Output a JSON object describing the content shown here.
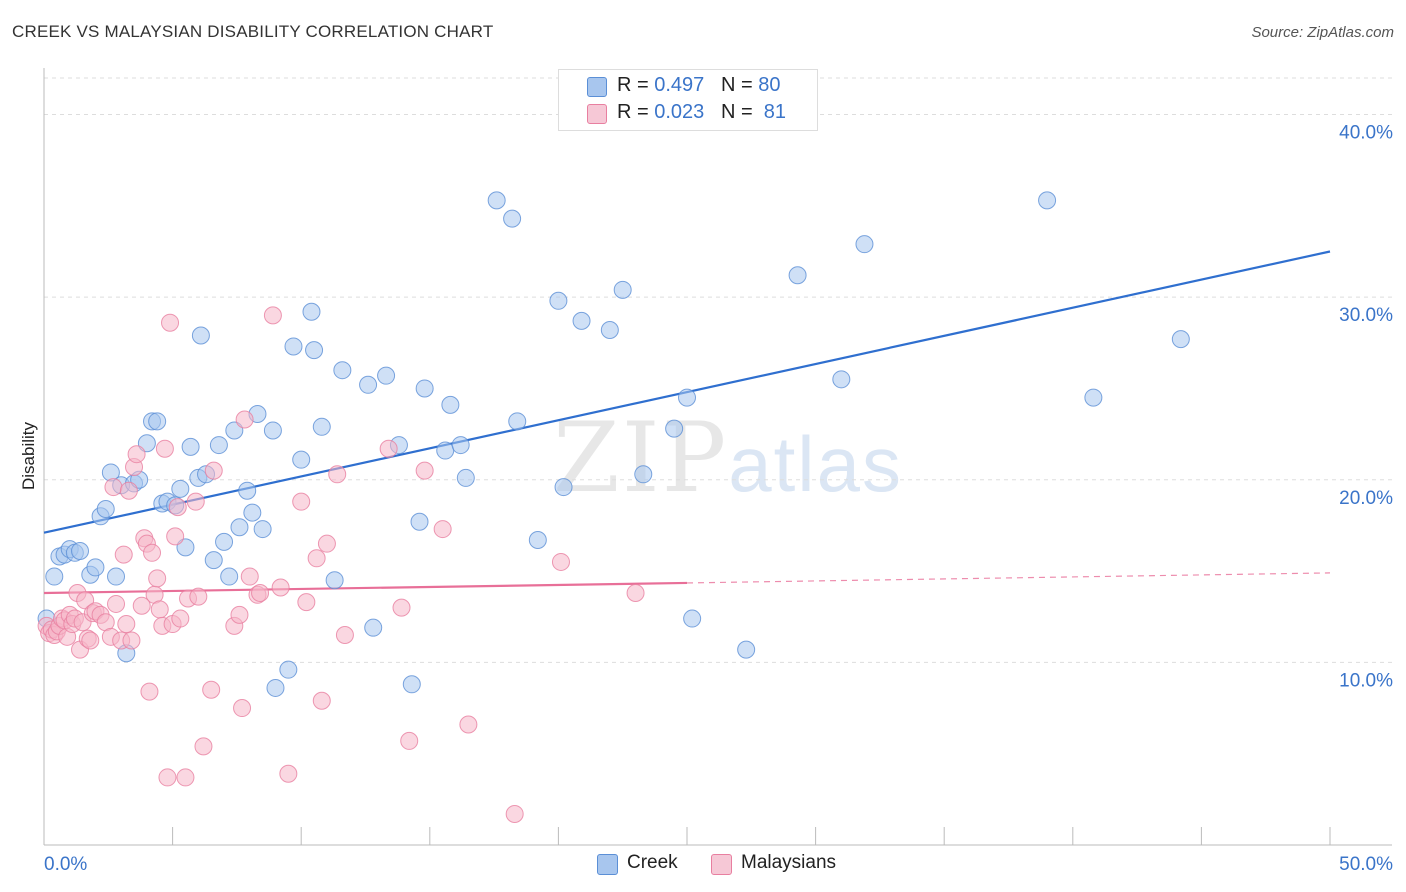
{
  "title": "CREEK VS MALAYSIAN DISABILITY CORRELATION CHART",
  "source": "Source: ZipAtlas.com",
  "watermark": {
    "zip": "ZIP",
    "atlas": "atlas"
  },
  "legend": {
    "rows": [
      {
        "r_label": "R = ",
        "r_value": "0.497",
        "n_label": "N = ",
        "n_value": "80",
        "color": "#a8c6ee"
      },
      {
        "r_label": "R = ",
        "r_value": "0.023",
        "n_label": "N = ",
        "n_value": "81",
        "color": "#f6b6c9"
      }
    ]
  },
  "bottom_legend": {
    "creek": "Creek",
    "malaysians": "Malaysians"
  },
  "colors": {
    "creek_fill": "#a8c6ee",
    "creek_stroke": "#5b8fd6",
    "creek_line": "#2f6fcf",
    "malay_fill": "#f6b6c9",
    "malay_stroke": "#e87fa0",
    "malay_line": "#e86f98",
    "grid": "#dddddd",
    "axis_text": "#3a74c9"
  },
  "chart_data": {
    "type": "scatter",
    "xlabel": "",
    "ylabel": "Disability",
    "xlim": [
      0,
      50
    ],
    "ylim": [
      0,
      42
    ],
    "x_tick_labels": [
      "0.0%",
      "50.0%"
    ],
    "y_ticks": [
      10,
      20,
      30,
      40
    ],
    "y_tick_labels": [
      "10.0%",
      "20.0%",
      "30.0%",
      "40.0%"
    ],
    "grid": true,
    "legend_position": "top-center",
    "series": [
      {
        "name": "Creek",
        "trend": {
          "x": [
            0,
            50
          ],
          "y": [
            17.1,
            32.5
          ],
          "dashed_from": null
        },
        "points": [
          [
            0.1,
            12.4
          ],
          [
            0.4,
            14.7
          ],
          [
            0.6,
            15.8
          ],
          [
            0.8,
            15.9
          ],
          [
            1.0,
            16.2
          ],
          [
            1.2,
            16.0
          ],
          [
            1.4,
            16.1
          ],
          [
            1.8,
            14.8
          ],
          [
            2.0,
            15.2
          ],
          [
            2.2,
            18.0
          ],
          [
            2.4,
            18.4
          ],
          [
            2.6,
            20.4
          ],
          [
            2.8,
            14.7
          ],
          [
            3.0,
            19.7
          ],
          [
            3.2,
            10.5
          ],
          [
            3.5,
            19.8
          ],
          [
            3.7,
            20.0
          ],
          [
            4.0,
            22.0
          ],
          [
            4.2,
            23.2
          ],
          [
            4.4,
            23.2
          ],
          [
            4.6,
            18.7
          ],
          [
            4.8,
            18.8
          ],
          [
            5.1,
            18.6
          ],
          [
            5.3,
            19.5
          ],
          [
            5.5,
            16.3
          ],
          [
            5.7,
            21.8
          ],
          [
            6.0,
            20.1
          ],
          [
            6.1,
            27.9
          ],
          [
            6.3,
            20.3
          ],
          [
            6.6,
            15.6
          ],
          [
            6.8,
            21.9
          ],
          [
            7.0,
            16.6
          ],
          [
            7.2,
            14.7
          ],
          [
            7.4,
            22.7
          ],
          [
            7.6,
            17.4
          ],
          [
            7.9,
            19.4
          ],
          [
            8.1,
            18.2
          ],
          [
            8.3,
            23.6
          ],
          [
            8.5,
            17.3
          ],
          [
            8.9,
            22.7
          ],
          [
            9.0,
            8.6
          ],
          [
            9.5,
            9.6
          ],
          [
            9.7,
            27.3
          ],
          [
            10.0,
            21.1
          ],
          [
            10.4,
            29.2
          ],
          [
            10.5,
            27.1
          ],
          [
            10.8,
            22.9
          ],
          [
            11.3,
            14.5
          ],
          [
            11.6,
            26.0
          ],
          [
            12.6,
            25.2
          ],
          [
            12.8,
            11.9
          ],
          [
            13.3,
            25.7
          ],
          [
            13.8,
            21.9
          ],
          [
            14.3,
            8.8
          ],
          [
            14.6,
            17.7
          ],
          [
            14.8,
            25.0
          ],
          [
            15.6,
            21.6
          ],
          [
            15.8,
            24.1
          ],
          [
            16.2,
            21.9
          ],
          [
            16.4,
            20.1
          ],
          [
            17.6,
            35.3
          ],
          [
            18.2,
            34.3
          ],
          [
            18.4,
            23.2
          ],
          [
            19.2,
            16.7
          ],
          [
            20.0,
            29.8
          ],
          [
            20.2,
            19.6
          ],
          [
            20.9,
            28.7
          ],
          [
            22.0,
            28.2
          ],
          [
            22.5,
            30.4
          ],
          [
            23.3,
            20.3
          ],
          [
            24.5,
            22.8
          ],
          [
            25.0,
            24.5
          ],
          [
            25.2,
            12.4
          ],
          [
            27.3,
            10.7
          ],
          [
            29.3,
            31.2
          ],
          [
            31.0,
            25.5
          ],
          [
            31.9,
            32.9
          ],
          [
            39.0,
            35.3
          ],
          [
            40.8,
            24.5
          ],
          [
            44.2,
            27.7
          ]
        ]
      },
      {
        "name": "Malaysians",
        "trend": {
          "x": [
            0,
            50
          ],
          "y": [
            13.8,
            14.9
          ],
          "dashed_from": 25
        },
        "points": [
          [
            0.1,
            12.0
          ],
          [
            0.2,
            11.6
          ],
          [
            0.3,
            11.8
          ],
          [
            0.4,
            11.5
          ],
          [
            0.5,
            11.7
          ],
          [
            0.6,
            12.0
          ],
          [
            0.7,
            12.4
          ],
          [
            0.8,
            12.3
          ],
          [
            0.9,
            11.4
          ],
          [
            1.0,
            12.6
          ],
          [
            1.1,
            12.1
          ],
          [
            1.2,
            12.4
          ],
          [
            1.3,
            13.8
          ],
          [
            1.4,
            10.7
          ],
          [
            1.5,
            12.2
          ],
          [
            1.6,
            13.4
          ],
          [
            1.7,
            11.3
          ],
          [
            1.8,
            11.2
          ],
          [
            1.9,
            12.7
          ],
          [
            2.0,
            12.8
          ],
          [
            2.2,
            12.6
          ],
          [
            2.4,
            12.2
          ],
          [
            2.6,
            11.4
          ],
          [
            2.7,
            19.6
          ],
          [
            2.8,
            13.2
          ],
          [
            3.0,
            11.2
          ],
          [
            3.1,
            15.9
          ],
          [
            3.2,
            12.1
          ],
          [
            3.3,
            19.4
          ],
          [
            3.4,
            11.2
          ],
          [
            3.5,
            20.7
          ],
          [
            3.6,
            21.4
          ],
          [
            3.8,
            13.1
          ],
          [
            3.9,
            16.8
          ],
          [
            4.0,
            16.5
          ],
          [
            4.1,
            8.4
          ],
          [
            4.2,
            16.0
          ],
          [
            4.3,
            13.7
          ],
          [
            4.4,
            14.6
          ],
          [
            4.5,
            12.9
          ],
          [
            4.6,
            12.0
          ],
          [
            4.7,
            21.7
          ],
          [
            4.8,
            3.7
          ],
          [
            4.9,
            28.6
          ],
          [
            5.0,
            12.1
          ],
          [
            5.1,
            16.9
          ],
          [
            5.2,
            18.5
          ],
          [
            5.3,
            12.4
          ],
          [
            5.5,
            3.7
          ],
          [
            5.6,
            13.5
          ],
          [
            5.9,
            18.8
          ],
          [
            6.0,
            13.6
          ],
          [
            6.2,
            5.4
          ],
          [
            6.5,
            8.5
          ],
          [
            6.6,
            20.5
          ],
          [
            7.4,
            12.0
          ],
          [
            7.6,
            12.6
          ],
          [
            7.7,
            7.5
          ],
          [
            7.8,
            23.3
          ],
          [
            8.0,
            14.7
          ],
          [
            8.3,
            13.7
          ],
          [
            8.4,
            13.8
          ],
          [
            8.9,
            29.0
          ],
          [
            9.2,
            14.1
          ],
          [
            9.5,
            3.9
          ],
          [
            10.0,
            18.8
          ],
          [
            10.2,
            13.3
          ],
          [
            10.6,
            15.7
          ],
          [
            10.8,
            7.9
          ],
          [
            11.0,
            16.5
          ],
          [
            11.4,
            20.3
          ],
          [
            11.7,
            11.5
          ],
          [
            13.4,
            21.7
          ],
          [
            13.9,
            13.0
          ],
          [
            14.2,
            5.7
          ],
          [
            14.8,
            20.5
          ],
          [
            15.5,
            17.3
          ],
          [
            16.5,
            6.6
          ],
          [
            18.3,
            1.7
          ],
          [
            20.1,
            15.5
          ],
          [
            23.0,
            13.8
          ]
        ]
      }
    ]
  }
}
